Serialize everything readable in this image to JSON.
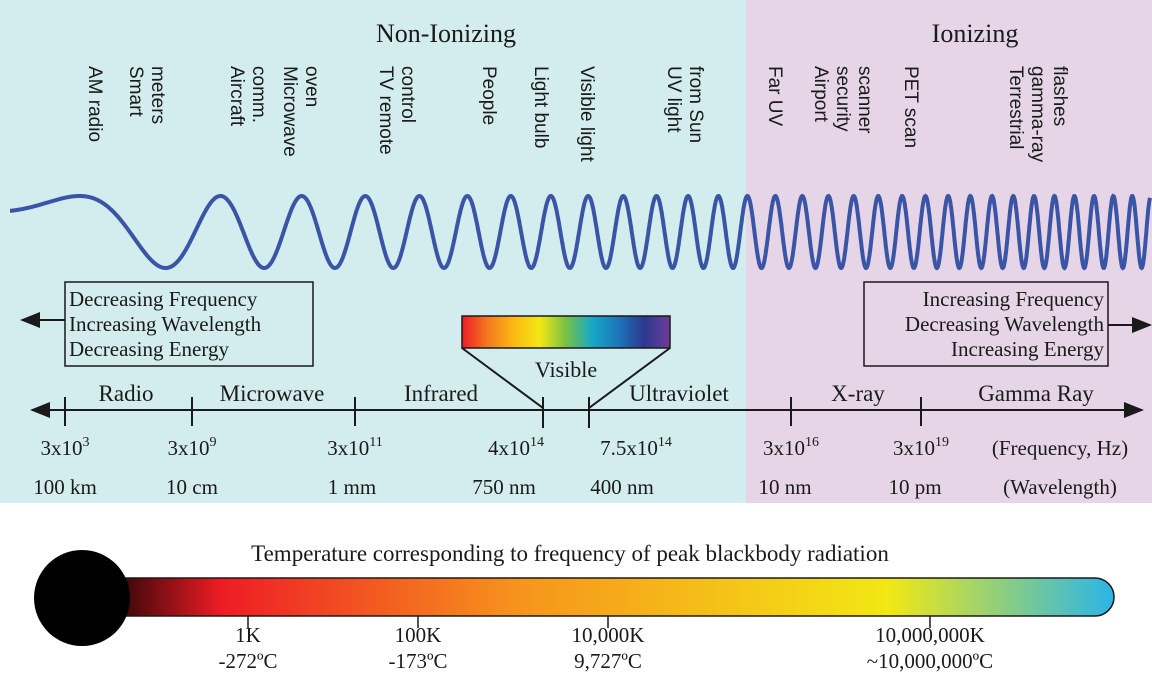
{
  "regions": {
    "non_ionizing": "Non-Ionizing",
    "ionizing": "Ionizing",
    "colors": {
      "non_ionizing": "#d3eced",
      "ionizing": "#e5d5e7",
      "wave": "#3a55a5"
    }
  },
  "sources": [
    [
      "AM radio"
    ],
    [
      "Smart",
      "meters"
    ],
    [
      "Aircraft",
      "comm."
    ],
    [
      "Microwave",
      "oven"
    ],
    [
      "TV remote",
      "control"
    ],
    [
      "People"
    ],
    [
      "Light bulb"
    ],
    [
      "Visible light"
    ],
    [
      "UV light",
      "from Sun"
    ],
    [
      "Far UV"
    ],
    [
      "Airport",
      "security",
      "scanner"
    ],
    [
      "PET scan"
    ],
    [
      "Terrestrial",
      "gamma-ray",
      "flashes"
    ]
  ],
  "left_box": {
    "lines": [
      "Decreasing Frequency",
      "Increasing Wavelength",
      "Decreasing Energy"
    ]
  },
  "right_box": {
    "lines": [
      "Increasing  Frequency",
      "Decreasing Wavelength",
      "Increasing Energy"
    ]
  },
  "visible": {
    "label": "Visible",
    "colors": [
      "#ee1c25",
      "#f47a20",
      "#fcb913",
      "#f2e814",
      "#78c044",
      "#17a9c6",
      "#1d76bb",
      "#2b3890",
      "#6f3b98"
    ]
  },
  "bands": [
    "Radio",
    "Microwave",
    "Infrared",
    "Ultraviolet",
    "X-ray",
    "Gamma Ray"
  ],
  "scale": {
    "frequencies": [
      {
        "base": "3x10",
        "exp": "3"
      },
      {
        "base": "3x10",
        "exp": "9"
      },
      {
        "base": "3x10",
        "exp": "11"
      },
      {
        "base": "4x10",
        "exp": "14"
      },
      {
        "base": "7.5x10",
        "exp": "14"
      },
      {
        "base": "3x10",
        "exp": "16"
      },
      {
        "base": "3x10",
        "exp": "19"
      }
    ],
    "wavelengths": [
      "100 km",
      "10 cm",
      "1 mm",
      "750 nm",
      "400 nm",
      "10 nm",
      "10 pm"
    ],
    "freq_unit": "(Frequency, Hz)",
    "wl_unit": "(Wavelength)"
  },
  "temperature": {
    "title": "Temperature corresponding to frequency of peak blackbody radiation",
    "marks": [
      {
        "k": "1K",
        "c": "-272ºC"
      },
      {
        "k": "100K",
        "c": "-173ºC"
      },
      {
        "k": "10,000K",
        "c": "9,727ºC"
      },
      {
        "k": "10,000,000K",
        "c": "~10,000,000ºC"
      }
    ],
    "gradient": [
      "#000000",
      "#ee1c25",
      "#f7941d",
      "#f2e814",
      "#2bb5e8"
    ]
  }
}
